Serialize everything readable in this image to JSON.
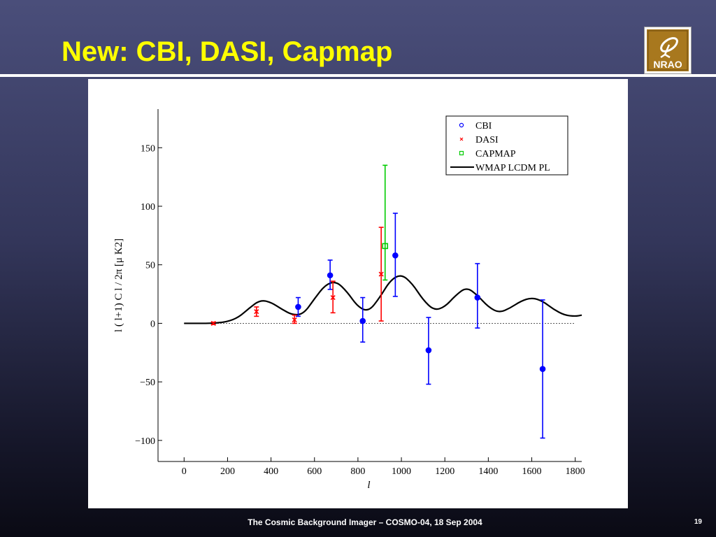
{
  "slide": {
    "title": "New: CBI, DASI, Capmap",
    "footer": "The Cosmic Background Imager – COSMO-04, 18 Sep 2004",
    "page_number": "19",
    "logo_text": "NRAO"
  },
  "colors": {
    "title": "#ffff00",
    "cbi": "#0000ff",
    "dasi": "#ff0000",
    "capmap": "#00cc00",
    "model": "#000000"
  },
  "chart_data": {
    "type": "scatter",
    "xlabel": "l",
    "ylabel": "l ( l+1) C l / 2π [μ K2]",
    "xlim": [
      -120,
      1830
    ],
    "ylim": [
      -118,
      183
    ],
    "xticks": [
      0,
      200,
      400,
      600,
      800,
      1000,
      1200,
      1400,
      1600,
      1800
    ],
    "yticks": [
      -100,
      -50,
      0,
      50,
      100,
      150
    ],
    "ytick_labels": [
      "−100",
      "−50",
      "0",
      "50",
      "100",
      "150"
    ],
    "zero_line": true,
    "grid": false,
    "legend_position": "top-right",
    "series": [
      {
        "name": "CBI",
        "marker": "circle",
        "color": "#0000ff",
        "points": [
          {
            "x": 525,
            "y": 14,
            "lo": 6,
            "hi": 22
          },
          {
            "x": 672,
            "y": 41,
            "lo": 29,
            "hi": 54
          },
          {
            "x": 822,
            "y": 2,
            "lo": -16,
            "hi": 22
          },
          {
            "x": 972,
            "y": 58,
            "lo": 23,
            "hi": 94
          },
          {
            "x": 1125,
            "y": -23,
            "lo": -52,
            "hi": 5
          },
          {
            "x": 1350,
            "y": 22,
            "lo": -4,
            "hi": 51
          },
          {
            "x": 1650,
            "y": -39,
            "lo": -98,
            "hi": 20
          }
        ]
      },
      {
        "name": "DASI",
        "marker": "x",
        "color": "#ff0000",
        "points": [
          {
            "x": 135,
            "y": 0,
            "lo": -1,
            "hi": 1
          },
          {
            "x": 333,
            "y": 10,
            "lo": 6,
            "hi": 14
          },
          {
            "x": 508,
            "y": 3,
            "lo": 0,
            "hi": 7
          },
          {
            "x": 685,
            "y": 22,
            "lo": 9,
            "hi": 36
          },
          {
            "x": 907,
            "y": 42,
            "lo": 2,
            "hi": 82
          }
        ]
      },
      {
        "name": "CAPMAP",
        "marker": "square",
        "color": "#00cc00",
        "points": [
          {
            "x": 925,
            "y": 66,
            "lo": 37,
            "hi": 135
          }
        ]
      },
      {
        "name": "WMAP LCDM PL",
        "marker": "line",
        "color": "#000000",
        "x": [
          0,
          50,
          100,
          150,
          200,
          250,
          300,
          350,
          400,
          450,
          500,
          550,
          600,
          650,
          700,
          750,
          800,
          850,
          900,
          950,
          1000,
          1050,
          1100,
          1150,
          1200,
          1250,
          1300,
          1350,
          1400,
          1450,
          1500,
          1550,
          1600,
          1650,
          1700,
          1750,
          1800,
          1830
        ],
        "y": [
          0,
          0,
          0,
          0.3,
          1.5,
          5,
          13,
          20,
          18,
          12,
          7,
          8,
          21,
          33,
          36,
          27,
          14,
          10,
          22,
          37,
          42,
          34,
          20,
          11,
          14,
          24,
          31,
          24,
          14,
          9,
          13,
          19,
          22,
          19,
          12,
          7,
          6,
          7
        ]
      }
    ]
  }
}
